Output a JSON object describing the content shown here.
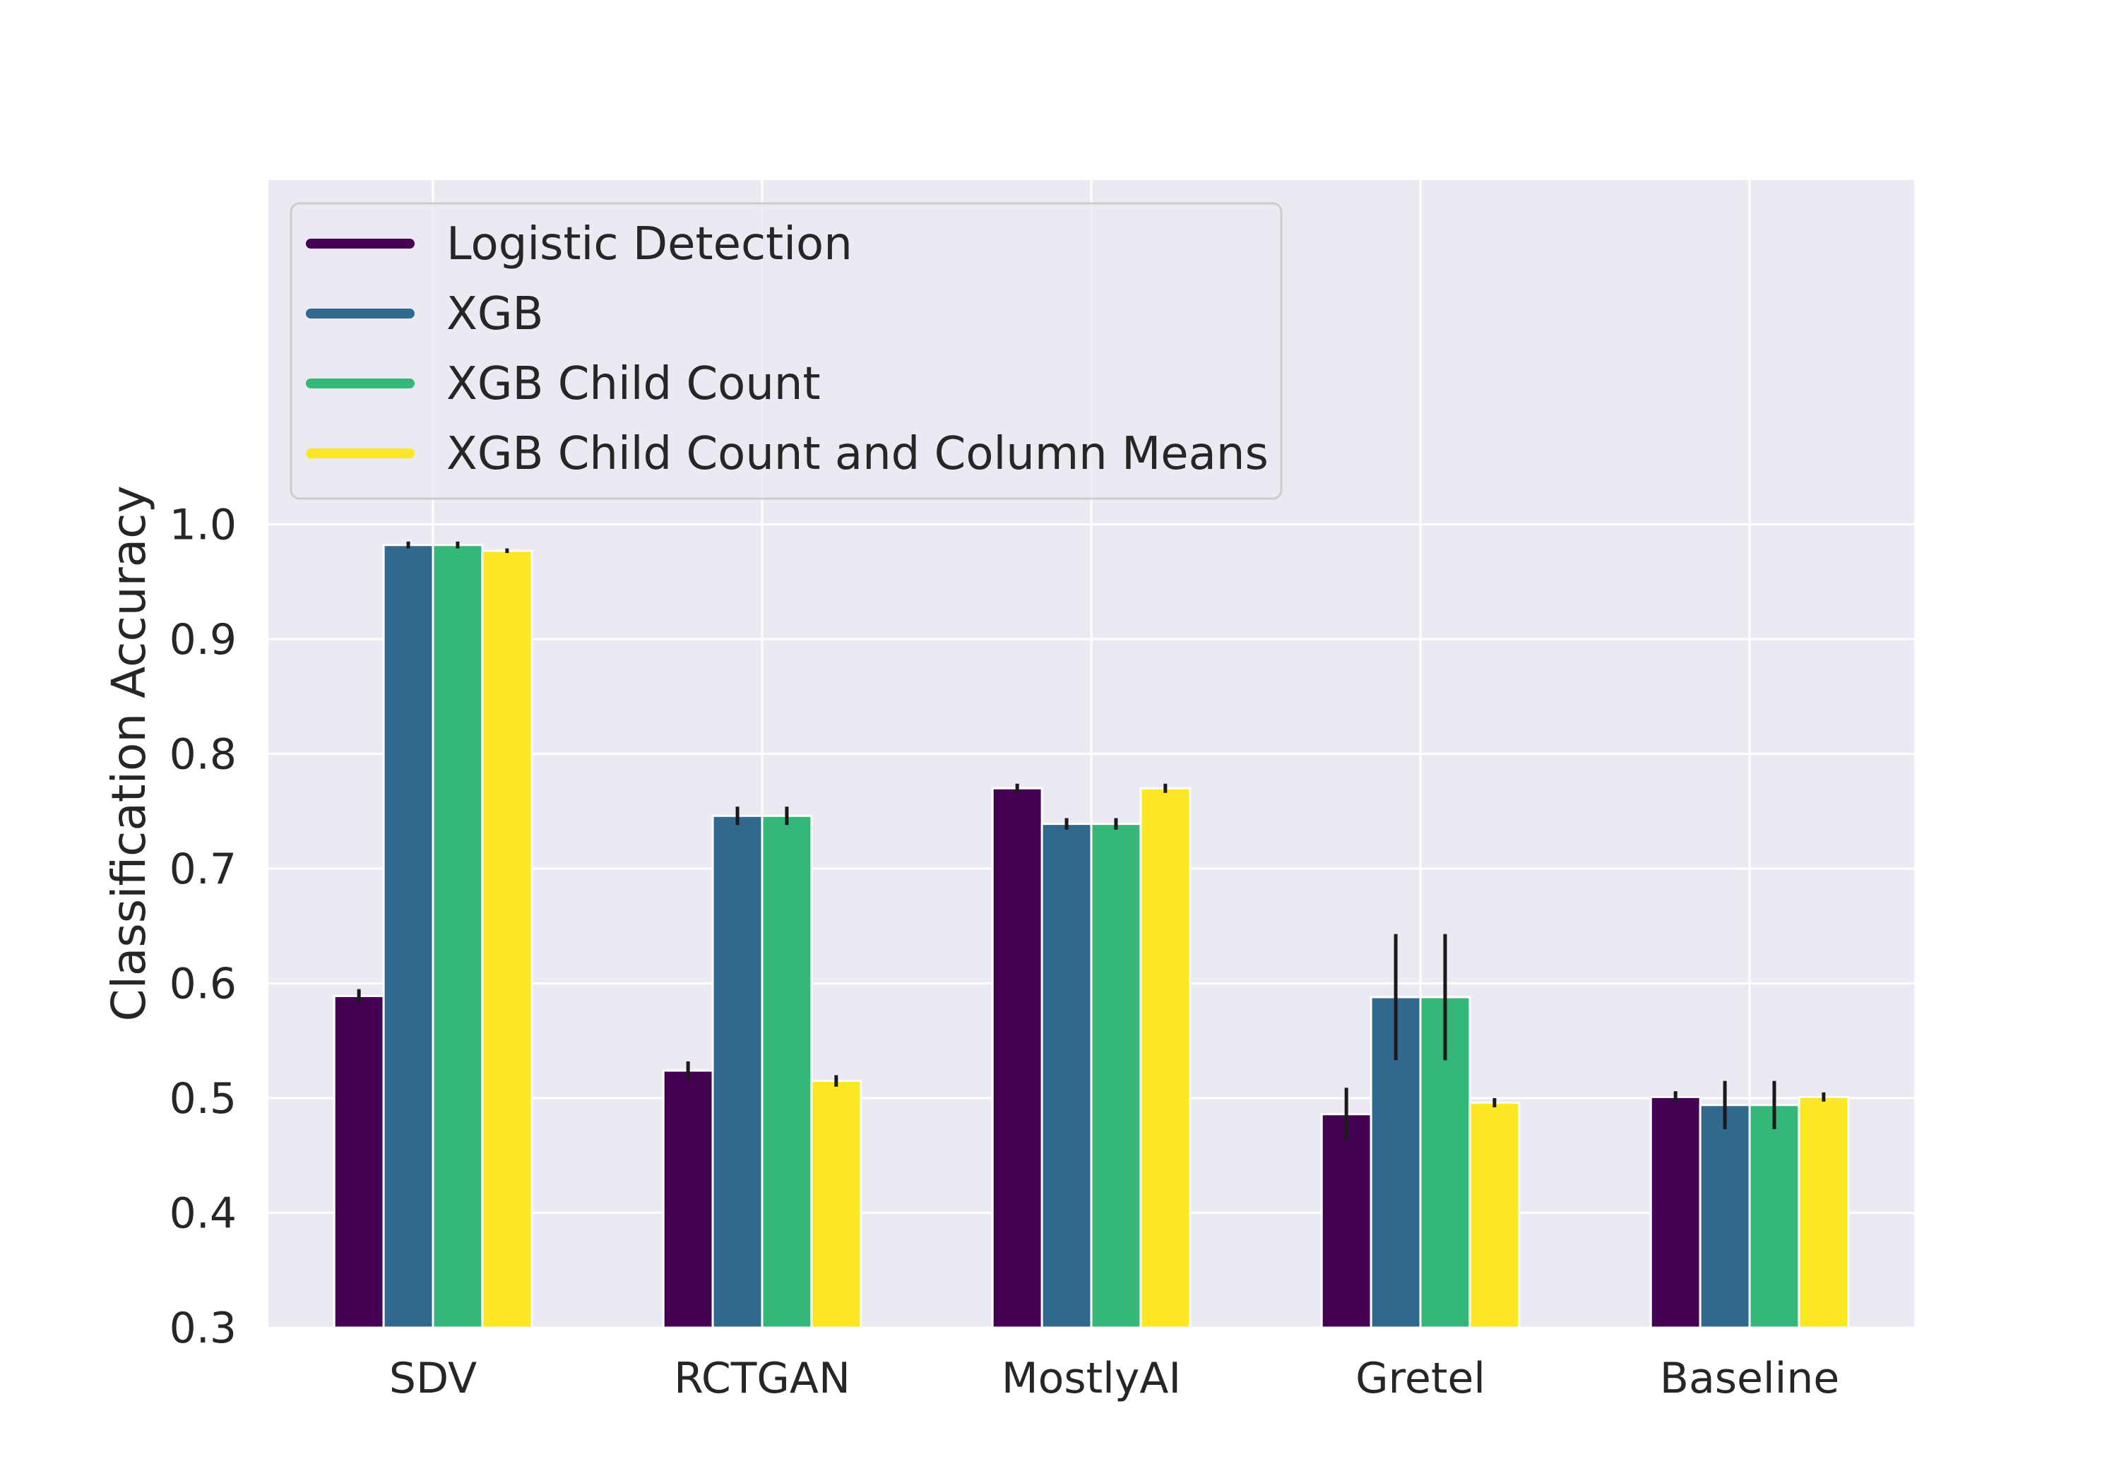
{
  "chart_data": {
    "type": "bar",
    "title": "",
    "xlabel": "",
    "ylabel": "Classification Accuracy",
    "ylim": [
      0.3,
      1.3
    ],
    "yticks": [
      0.3,
      0.4,
      0.5,
      0.6,
      0.7,
      0.8,
      0.9,
      1.0
    ],
    "ytick_labels": [
      "0.3",
      "0.4",
      "0.5",
      "0.6",
      "0.7",
      "0.8",
      "0.9",
      "1.0"
    ],
    "grid": true,
    "legend_position": "top-left",
    "categories": [
      "SDV",
      "RCTGAN",
      "MostlyAI",
      "Gretel",
      "Baseline"
    ],
    "series": [
      {
        "name": "Logistic Detection",
        "color": "#440154",
        "values": [
          0.589,
          0.524,
          0.77,
          0.486,
          0.501
        ],
        "errors": [
          0.006,
          0.008,
          0.004,
          0.023,
          0.005
        ]
      },
      {
        "name": "XGB",
        "color": "#31688e",
        "values": [
          0.982,
          0.746,
          0.739,
          0.588,
          0.494
        ],
        "errors": [
          0.003,
          0.008,
          0.005,
          0.055,
          0.021
        ]
      },
      {
        "name": "XGB Child Count",
        "color": "#35b779",
        "values": [
          0.982,
          0.746,
          0.739,
          0.588,
          0.494
        ],
        "errors": [
          0.003,
          0.008,
          0.005,
          0.055,
          0.021
        ]
      },
      {
        "name": "XGB Child Count and Column Means",
        "color": "#fde725",
        "values": [
          0.977,
          0.515,
          0.77,
          0.496,
          0.501
        ],
        "errors": [
          0.002,
          0.005,
          0.004,
          0.004,
          0.004
        ]
      }
    ],
    "colors": {
      "plot_background": "#eaeaf2",
      "grid": "#ffffff",
      "bar_edge": "#ffffff",
      "error_bar": "#1a1a1a",
      "text": "#262626"
    }
  }
}
